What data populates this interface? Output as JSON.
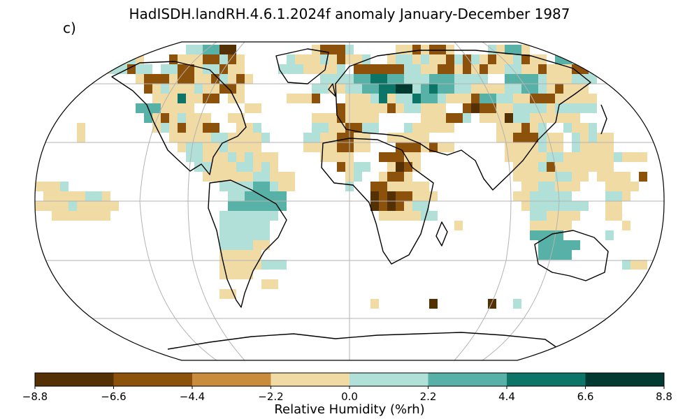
{
  "title": "HadISDH.landRH.4.6.1.2024f anomaly January-December 1987",
  "panel_label": "c)",
  "colorbar": {
    "label": "Relative Humidity (%rh)",
    "ticks": [
      "−8.8",
      "−6.6",
      "−4.4",
      "−2.2",
      "0.0",
      "2.2",
      "4.4",
      "6.6",
      "8.8"
    ],
    "colors": [
      "#543005",
      "#8c510a",
      "#c88c3c",
      "#f0dba4",
      "#b1e0d9",
      "#58b1a6",
      "#0d7468",
      "#013a30"
    ]
  },
  "map": {
    "projection": "Robinson",
    "graticule": true,
    "variable": "Relative Humidity anomaly",
    "units": "%rh",
    "year": "1987"
  }
}
